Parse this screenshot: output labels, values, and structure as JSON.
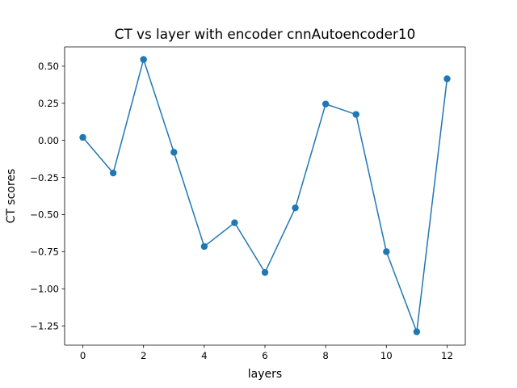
{
  "chart_data": {
    "type": "line",
    "title": "CT vs layer with encoder cnnAutoencoder10",
    "xlabel": "layers",
    "ylabel": "CT scores",
    "xlim": [
      -0.6,
      12.6
    ],
    "ylim": [
      -1.38,
      0.63
    ],
    "xticks": [
      0,
      2,
      4,
      6,
      8,
      10,
      12
    ],
    "xtick_labels": [
      "0",
      "2",
      "4",
      "6",
      "8",
      "10",
      "12"
    ],
    "yticks": [
      0.5,
      0.25,
      0.0,
      -0.25,
      -0.5,
      -0.75,
      -1.0,
      -1.25
    ],
    "ytick_labels": [
      "0.50",
      "0.25",
      "0.00",
      "−0.25",
      "−0.50",
      "−0.75",
      "−1.00",
      "−1.25"
    ],
    "grid": false,
    "series": [
      {
        "name": "CT scores",
        "color": "#1f77b4",
        "marker": "circle",
        "x": [
          0,
          1,
          2,
          3,
          4,
          5,
          6,
          7,
          8,
          9,
          10,
          11,
          12
        ],
        "values": [
          0.02,
          -0.22,
          0.545,
          -0.08,
          -0.715,
          -0.555,
          -0.89,
          -0.455,
          0.245,
          0.175,
          -0.75,
          -1.29,
          0.415
        ]
      }
    ]
  }
}
